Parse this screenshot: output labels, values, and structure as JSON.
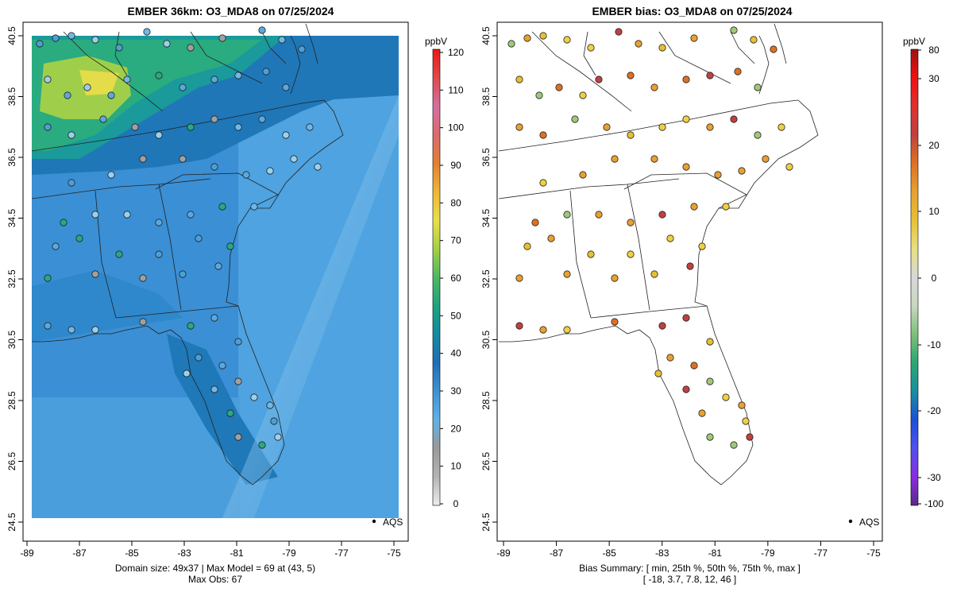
{
  "left": {
    "title": "EMBER 36km: O3_MDA8 on 07/25/2024",
    "colorbar_unit": "ppbV",
    "colorbar_ticks": [
      "0",
      "10",
      "20",
      "30",
      "40",
      "50",
      "60",
      "70",
      "80",
      "90",
      "100",
      "110",
      "120"
    ],
    "colorbar_range": [
      0,
      120
    ],
    "legend_label": "AQS",
    "footer_line1": "Domain size: 49x37 | Max Model = 69 at (43, 5)",
    "footer_line2": "Max Obs: 67"
  },
  "right": {
    "title": "EMBER bias: O3_MDA8 on 07/25/2024",
    "colorbar_unit": "ppbV",
    "colorbar_ticks": [
      "-100",
      "-30",
      "-20",
      "-10",
      "0",
      "10",
      "20",
      "30",
      "80"
    ],
    "legend_label": "AQS",
    "footer_line1": "Bias Summary: [ min, 25th %, 50th %, 75th %, max ]",
    "footer_line2": "[ -18,   3.7,   7.8,   12,   46 ]"
  },
  "axes": {
    "x_ticks": [
      "-89",
      "-87",
      "-85",
      "-83",
      "-81",
      "-79",
      "-77",
      "-75"
    ],
    "y_ticks": [
      "40.5",
      "38.5",
      "36.5",
      "34.5",
      "32.5",
      "30.5",
      "28.5",
      "26.5",
      "24.5"
    ],
    "lon_range": [
      -89.2,
      -74.7
    ],
    "lat_range": [
      24.5,
      40.8
    ]
  },
  "colors": {
    "colorbar_left": [
      "#ececec",
      "#b4b4b4",
      "#9a9a9a",
      "#5fb2e6",
      "#3d93d2",
      "#1f6fb8",
      "#138aa0",
      "#1aa582",
      "#4cba60",
      "#a5d043",
      "#e9df46",
      "#f0b634",
      "#e57f2e",
      "#dc6a6e",
      "#d66fa0",
      "#e04a4a",
      "#f01515"
    ],
    "colorbar_right": [
      "#5a2a8a",
      "#8a2be2",
      "#5050f0",
      "#1a50d8",
      "#1890a0",
      "#2aa870",
      "#7cc07a",
      "#c8d8c0",
      "#d8d8d8",
      "#e8e080",
      "#e8c030",
      "#e8a030",
      "#e07020",
      "#c04040",
      "#e03030",
      "#f01010",
      "#a01010"
    ]
  }
}
